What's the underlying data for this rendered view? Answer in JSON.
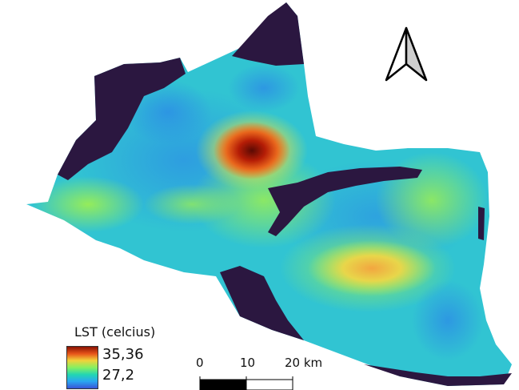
{
  "legend": {
    "title": "LST (celcius)",
    "max_value": "35,36",
    "min_value": "27,2",
    "colors": [
      "#8a1203",
      "#e8551a",
      "#f1d23a",
      "#86f061",
      "#22d6b3",
      "#2aa7f1",
      "#3955d6",
      "#2b1740"
    ]
  },
  "scale_bar": {
    "label_0": "0",
    "label_10": "10",
    "label_20": "20 km"
  },
  "north_arrow": {
    "icon": "north-arrow-icon"
  },
  "map": {
    "nodata_color": "#ffffff",
    "low_color": "#2b1740"
  }
}
